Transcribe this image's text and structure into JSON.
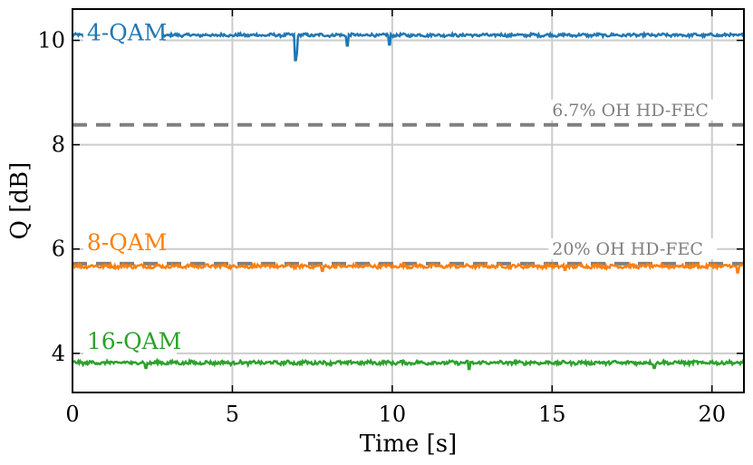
{
  "chart_data": {
    "type": "line",
    "xlabel": "Time [s]",
    "ylabel": "Q [dB]",
    "xlim": [
      0,
      21
    ],
    "ylim": [
      3.25,
      10.6
    ],
    "x_ticks": [
      0,
      5,
      10,
      15,
      20
    ],
    "y_ticks": [
      4,
      6,
      8,
      10
    ],
    "grid": true,
    "series": [
      {
        "name": "4-QAM",
        "color": "#1f77b4",
        "mean": 10.1,
        "noise": 0.025,
        "dips": [
          {
            "x": 6.98,
            "y": 9.62
          },
          {
            "x": 7.02,
            "y": 9.75
          },
          {
            "x": 8.6,
            "y": 9.9
          },
          {
            "x": 9.9,
            "y": 9.92
          }
        ]
      },
      {
        "name": "8-QAM",
        "color": "#ff7f0e",
        "mean": 5.67,
        "noise": 0.03,
        "dips": [
          {
            "x": 7.8,
            "y": 5.58
          },
          {
            "x": 15.4,
            "y": 5.6
          },
          {
            "x": 20.8,
            "y": 5.55
          }
        ]
      },
      {
        "name": "16-QAM",
        "color": "#2ca02c",
        "mean": 3.82,
        "noise": 0.03,
        "dips": [
          {
            "x": 2.3,
            "y": 3.72
          },
          {
            "x": 12.4,
            "y": 3.7
          },
          {
            "x": 18.2,
            "y": 3.72
          }
        ]
      }
    ],
    "reference_lines": [
      {
        "name": "6.7% OH HD-FEC",
        "y": 8.38,
        "color": "#808080"
      },
      {
        "name": "20% OH HD-FEC",
        "y": 5.72,
        "color": "#808080"
      }
    ]
  }
}
